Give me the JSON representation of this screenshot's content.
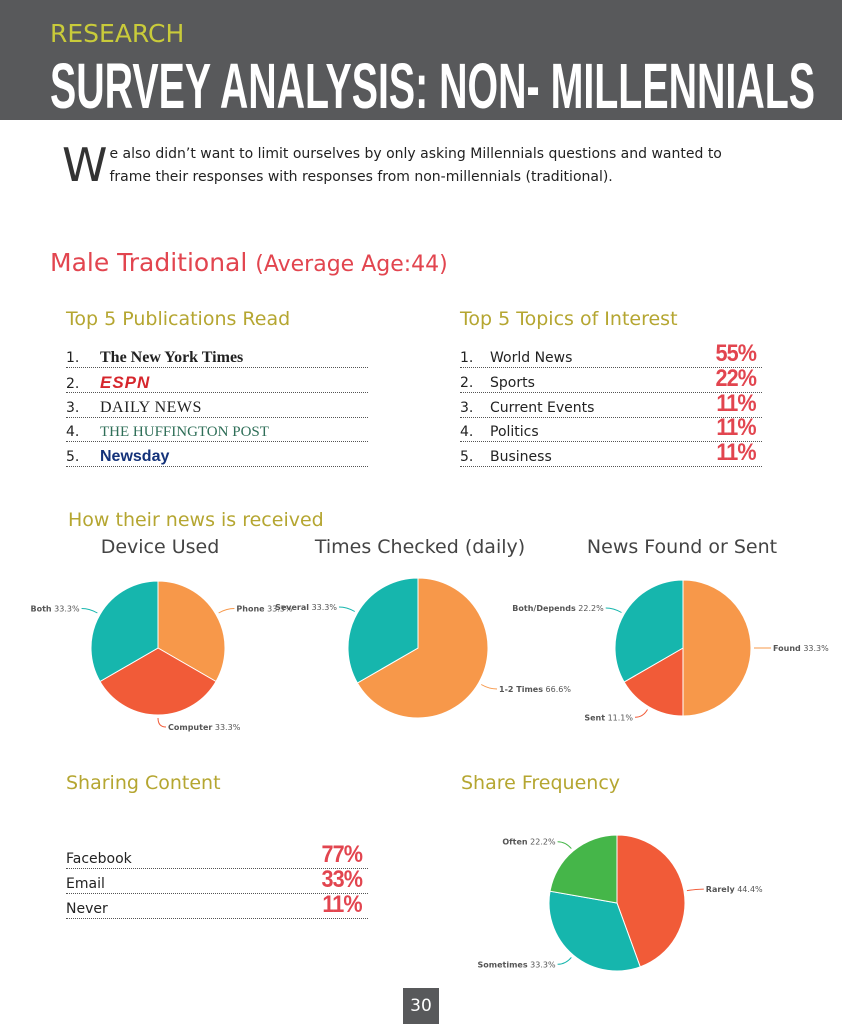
{
  "header": {
    "kicker": "RESEARCH",
    "title": "SURVEY ANALYSIS: NON- MILLENNIALS"
  },
  "intro": {
    "drop_cap": "W",
    "text": "e also didn’t want to limit ourselves by only asking Millennials questions and wanted to frame their responses with responses from non-millennials (traditional)."
  },
  "section": {
    "title": "Male Traditional",
    "subtitle": "(Average Age:44)"
  },
  "publications": {
    "title": "Top 5 Publications Read",
    "items": [
      {
        "num": "1.",
        "name": "The New York Times"
      },
      {
        "num": "2.",
        "name": "ESPN"
      },
      {
        "num": "3.",
        "name": "DAILY NEWS"
      },
      {
        "num": "4.",
        "name": "THE HUFFINGTON POST"
      },
      {
        "num": "5.",
        "name": "Newsday"
      }
    ]
  },
  "topics": {
    "title": "Top 5 Topics of Interest",
    "items": [
      {
        "num": "1.",
        "name": "World News",
        "value": "55%"
      },
      {
        "num": "2.",
        "name": "Sports",
        "value": "22%"
      },
      {
        "num": "3.",
        "name": "Current Events",
        "value": "11%"
      },
      {
        "num": "4.",
        "name": "Politics",
        "value": "11%"
      },
      {
        "num": "5.",
        "name": "Business",
        "value": "11%"
      }
    ]
  },
  "news": {
    "title": "How their news is received"
  },
  "charts": [
    {
      "type": "pie",
      "title": "Device Used",
      "categories": [
        "Phone",
        "Computer",
        "Both"
      ],
      "values": [
        33.3,
        33.3,
        33.3
      ],
      "value_labels": [
        "33.3%",
        "33.3%",
        "33.3%"
      ],
      "colors": [
        "#f7984a",
        "#f15b38",
        "#16b6ad"
      ]
    },
    {
      "type": "pie",
      "title": "Times Checked (daily)",
      "categories": [
        "1-2 Times",
        "Several"
      ],
      "values": [
        66.6,
        33.3
      ],
      "value_labels": [
        "66.6%",
        "33.3%"
      ],
      "colors": [
        "#f7984a",
        "#16b6ad"
      ]
    },
    {
      "type": "pie",
      "title": "News Found or Sent",
      "categories": [
        "Found",
        "Sent",
        "Both/Depends"
      ],
      "values": [
        33.3,
        11.1,
        22.2
      ],
      "value_labels": [
        "33.3%",
        "11.1%",
        "22.2%"
      ],
      "colors": [
        "#f7984a",
        "#f15b38",
        "#16b6ad"
      ]
    },
    {
      "type": "pie",
      "title": "Share Frequency",
      "categories": [
        "Rarely",
        "Sometimes",
        "Often"
      ],
      "values": [
        44.4,
        33.3,
        22.2
      ],
      "value_labels": [
        "44.4%",
        "33.3%",
        "22.2%"
      ],
      "colors": [
        "#f15b38",
        "#16b6ad",
        "#45b649"
      ]
    }
  ],
  "sharing": {
    "title": "Sharing Content",
    "items": [
      {
        "name": "Facebook",
        "value": "77%"
      },
      {
        "name": "Email",
        "value": "33%"
      },
      {
        "name": "Never",
        "value": "11%"
      }
    ]
  },
  "footer": {
    "page": "30"
  }
}
